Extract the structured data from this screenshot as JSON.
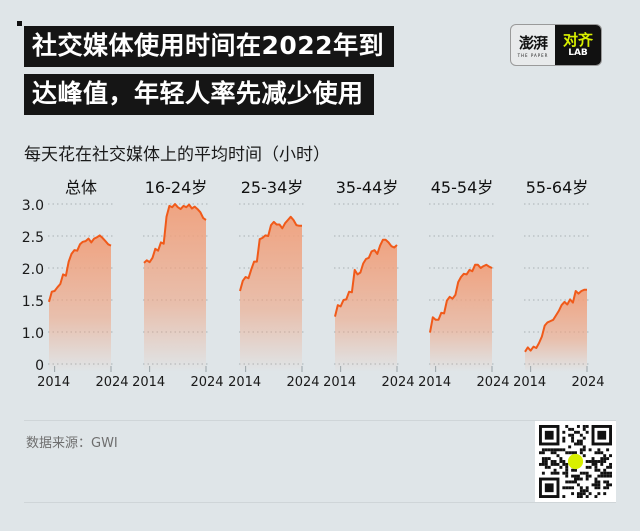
{
  "header": {
    "title_line1": "社交媒体使用时间在2022年到",
    "title_line2": "达峰值，年轻人率先减少使用"
  },
  "logo": {
    "left_cn": "澎湃",
    "left_en": "THE PAPER",
    "right_cn": "对齐",
    "right_en": "LAB"
  },
  "subtitle": "每天花在社交媒体上的平均时间（小时）",
  "footer": {
    "source": "数据来源：GWI"
  },
  "qr": {
    "label": "qr-code"
  },
  "colors": {
    "line": "#f05a1a",
    "fill": "#f0a07c",
    "background": "#dfe5e8",
    "title_bg": "#151515"
  },
  "chart_data": {
    "type": "area",
    "title": "每天花在社交媒体上的平均时间（小时）",
    "xlabel": "",
    "ylabel": "小时",
    "yticks": [
      "0",
      "1.0",
      "1.5",
      "2.0",
      "2.5",
      "3.0"
    ],
    "ylim": [
      0.5,
      3.0
    ],
    "axis_break_note": "y axis is truncated; '0' label sits one step below 1.0",
    "xticks": [
      "2014",
      "2024"
    ],
    "grid": true,
    "legend": null,
    "x": [
      2013,
      2013.5,
      2014,
      2014.5,
      2015,
      2015.5,
      2016,
      2016.5,
      2017,
      2017.5,
      2018,
      2018.5,
      2019,
      2019.5,
      2020,
      2020.5,
      2021,
      2021.5,
      2022,
      2022.5,
      2023,
      2023.5,
      2024
    ],
    "panels": [
      {
        "name": "总体",
        "values": [
          1.47,
          1.63,
          1.64,
          1.7,
          1.75,
          1.9,
          1.88,
          2.1,
          2.22,
          2.28,
          2.27,
          2.37,
          2.41,
          2.42,
          2.46,
          2.4,
          2.46,
          2.48,
          2.51,
          2.47,
          2.42,
          2.37,
          2.35
        ]
      },
      {
        "name": "16-24岁",
        "values": [
          2.08,
          2.12,
          2.09,
          2.16,
          2.3,
          2.27,
          2.4,
          2.38,
          2.8,
          2.97,
          2.95,
          3.0,
          2.95,
          2.92,
          2.97,
          2.95,
          2.99,
          2.93,
          2.96,
          2.92,
          2.87,
          2.78,
          2.75
        ]
      },
      {
        "name": "25-34岁",
        "values": [
          1.64,
          1.8,
          1.86,
          1.84,
          1.98,
          2.1,
          2.1,
          2.45,
          2.47,
          2.51,
          2.5,
          2.67,
          2.72,
          2.68,
          2.68,
          2.62,
          2.7,
          2.75,
          2.8,
          2.75,
          2.67,
          2.66,
          2.66
        ]
      },
      {
        "name": "35-44岁",
        "values": [
          1.24,
          1.42,
          1.4,
          1.5,
          1.51,
          1.63,
          1.62,
          1.97,
          1.9,
          1.93,
          2.07,
          2.14,
          2.16,
          2.26,
          2.28,
          2.22,
          2.35,
          2.44,
          2.44,
          2.4,
          2.34,
          2.32,
          2.36
        ]
      },
      {
        "name": "45-54岁",
        "values": [
          0.99,
          1.23,
          1.19,
          1.19,
          1.3,
          1.29,
          1.49,
          1.55,
          1.52,
          1.58,
          1.78,
          1.86,
          1.91,
          1.9,
          1.97,
          1.95,
          2.05,
          2.05,
          2.0,
          2.03,
          2.05,
          2.02,
          2.0
        ]
      },
      {
        "name": "55-64岁",
        "values": [
          0.69,
          0.76,
          0.71,
          0.77,
          0.75,
          0.83,
          0.93,
          1.1,
          1.15,
          1.17,
          1.19,
          1.26,
          1.33,
          1.42,
          1.47,
          1.43,
          1.51,
          1.46,
          1.64,
          1.6,
          1.64,
          1.66,
          1.66
        ]
      }
    ]
  }
}
